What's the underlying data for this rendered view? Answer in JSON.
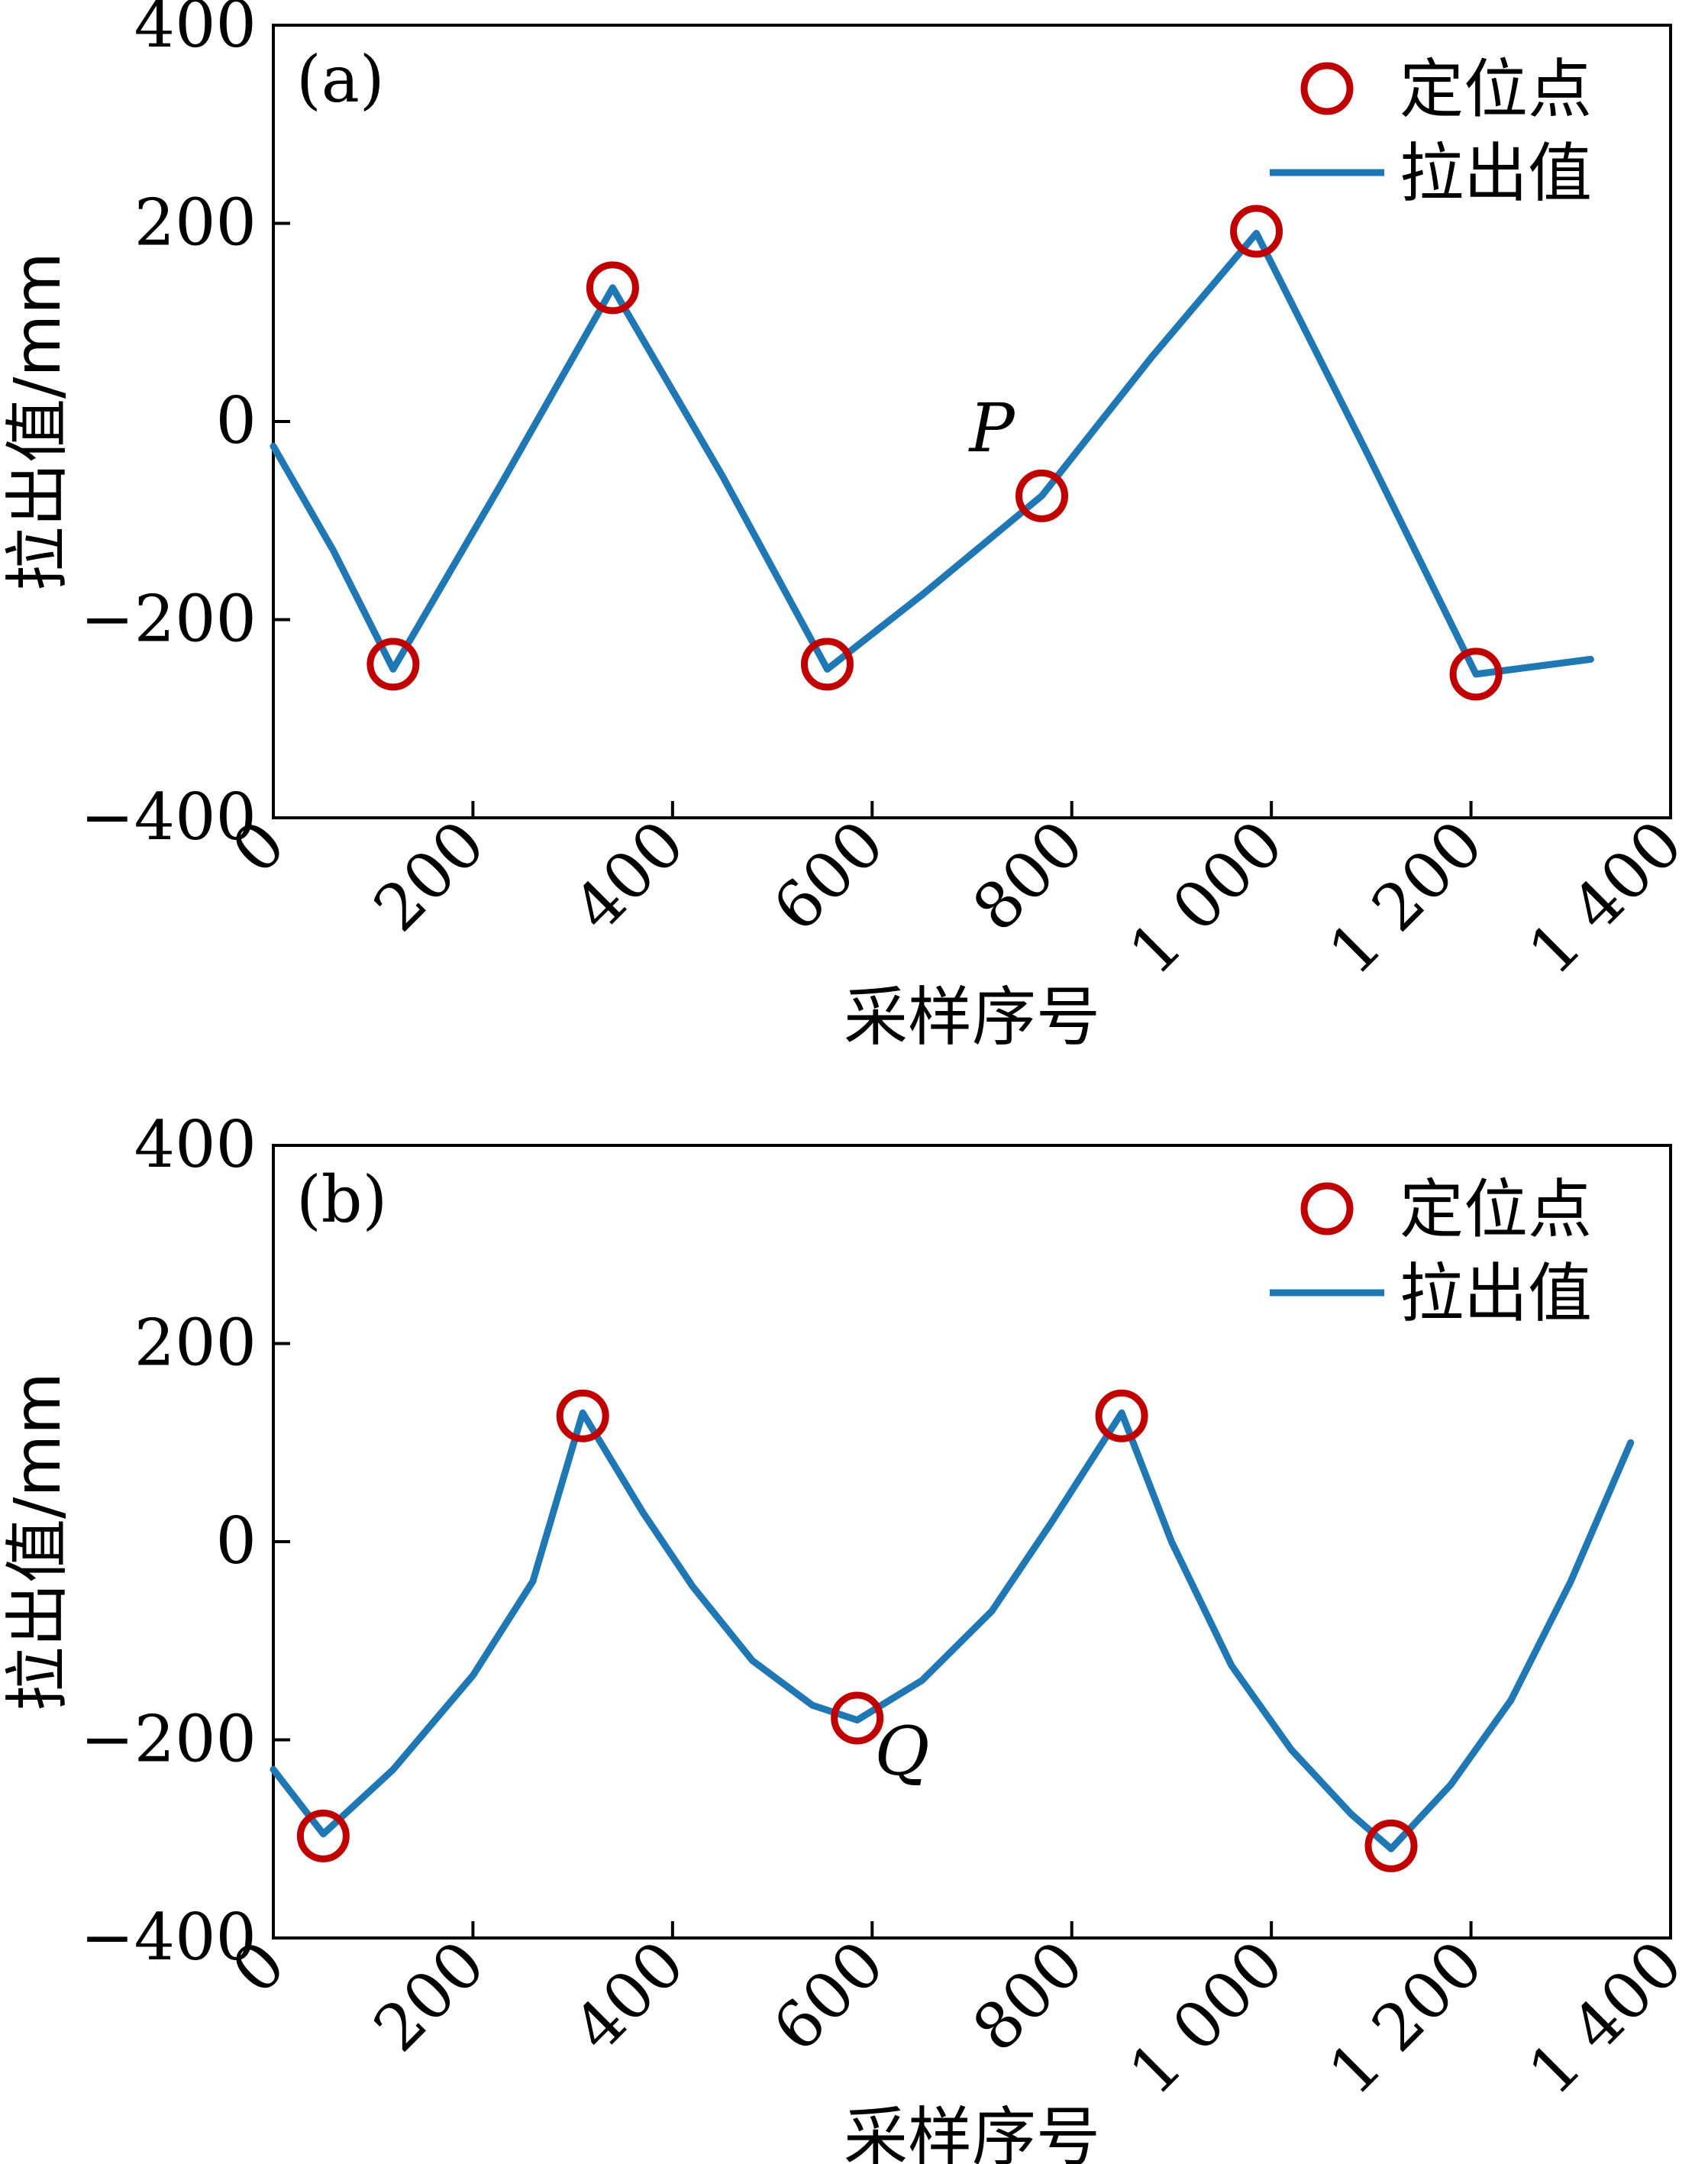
{
  "figure": {
    "description_title": ""
  },
  "colors": {
    "line": "#1f77b4",
    "marker": "#c00000",
    "axis": "#000000"
  },
  "chart_data": [
    {
      "type": "line",
      "panel_label": "(a)",
      "xlabel": "采样序号",
      "ylabel": "拉出值/mm",
      "xlim": [
        0,
        1400
      ],
      "ylim": [
        -400,
        400
      ],
      "xticks": [
        0,
        200,
        400,
        600,
        800,
        1000,
        1200,
        1400
      ],
      "xtick_labels": [
        "0",
        "200",
        "400",
        "600",
        "800",
        "1 000",
        "1 200",
        "1 400"
      ],
      "yticks": [
        -400,
        -200,
        0,
        200,
        400
      ],
      "ytick_labels": [
        "−400",
        "−200",
        "0",
        "200",
        "400"
      ],
      "legend": {
        "position": "top-right",
        "marker_label": "定位点",
        "line_label": "拉出值"
      },
      "series": [
        {
          "name": "拉出值",
          "x": [
            0,
            60,
            120,
            230,
            340,
            450,
            555,
            650,
            770,
            880,
            985,
            1095,
            1205,
            1320
          ],
          "y": [
            -25,
            -130,
            -250,
            -60,
            135,
            -55,
            -250,
            -175,
            -75,
            65,
            190,
            -30,
            -255,
            -240
          ]
        }
      ],
      "markers": {
        "name": "定位点",
        "x": [
          120,
          340,
          555,
          770,
          985,
          1205
        ],
        "y": [
          -245,
          135,
          -245,
          -75,
          192,
          -255
        ]
      },
      "annotations": [
        {
          "text": "P",
          "x": 720,
          "y": -30
        }
      ]
    },
    {
      "type": "line",
      "panel_label": "(b)",
      "xlabel": "采样序号",
      "ylabel": "拉出值/mm",
      "xlim": [
        0,
        1400
      ],
      "ylim": [
        -400,
        400
      ],
      "xticks": [
        0,
        200,
        400,
        600,
        800,
        1000,
        1200,
        1400
      ],
      "xtick_labels": [
        "0",
        "200",
        "400",
        "600",
        "800",
        "1 000",
        "1 200",
        "1 400"
      ],
      "yticks": [
        -400,
        -200,
        0,
        200,
        400
      ],
      "ytick_labels": [
        "−400",
        "−200",
        "0",
        "200",
        "400"
      ],
      "legend": {
        "position": "top-right",
        "marker_label": "定位点",
        "line_label": "拉出值"
      },
      "series": [
        {
          "name": "拉出值",
          "x": [
            0,
            50,
            120,
            200,
            260,
            310,
            370,
            420,
            480,
            540,
            585,
            650,
            720,
            780,
            850,
            900,
            960,
            1020,
            1080,
            1120,
            1180,
            1240,
            1300,
            1360
          ],
          "y": [
            -230,
            -295,
            -230,
            -135,
            -40,
            130,
            30,
            -45,
            -120,
            -165,
            -180,
            -140,
            -70,
            20,
            130,
            0,
            -125,
            -210,
            -275,
            -310,
            -245,
            -160,
            -40,
            100
          ]
        }
      ],
      "markers": {
        "name": "定位点",
        "x": [
          50,
          310,
          585,
          850,
          1120
        ],
        "y": [
          -297,
          127,
          -178,
          127,
          -307
        ]
      },
      "annotations": [
        {
          "text": "Q",
          "x": 630,
          "y": -235
        }
      ]
    }
  ]
}
